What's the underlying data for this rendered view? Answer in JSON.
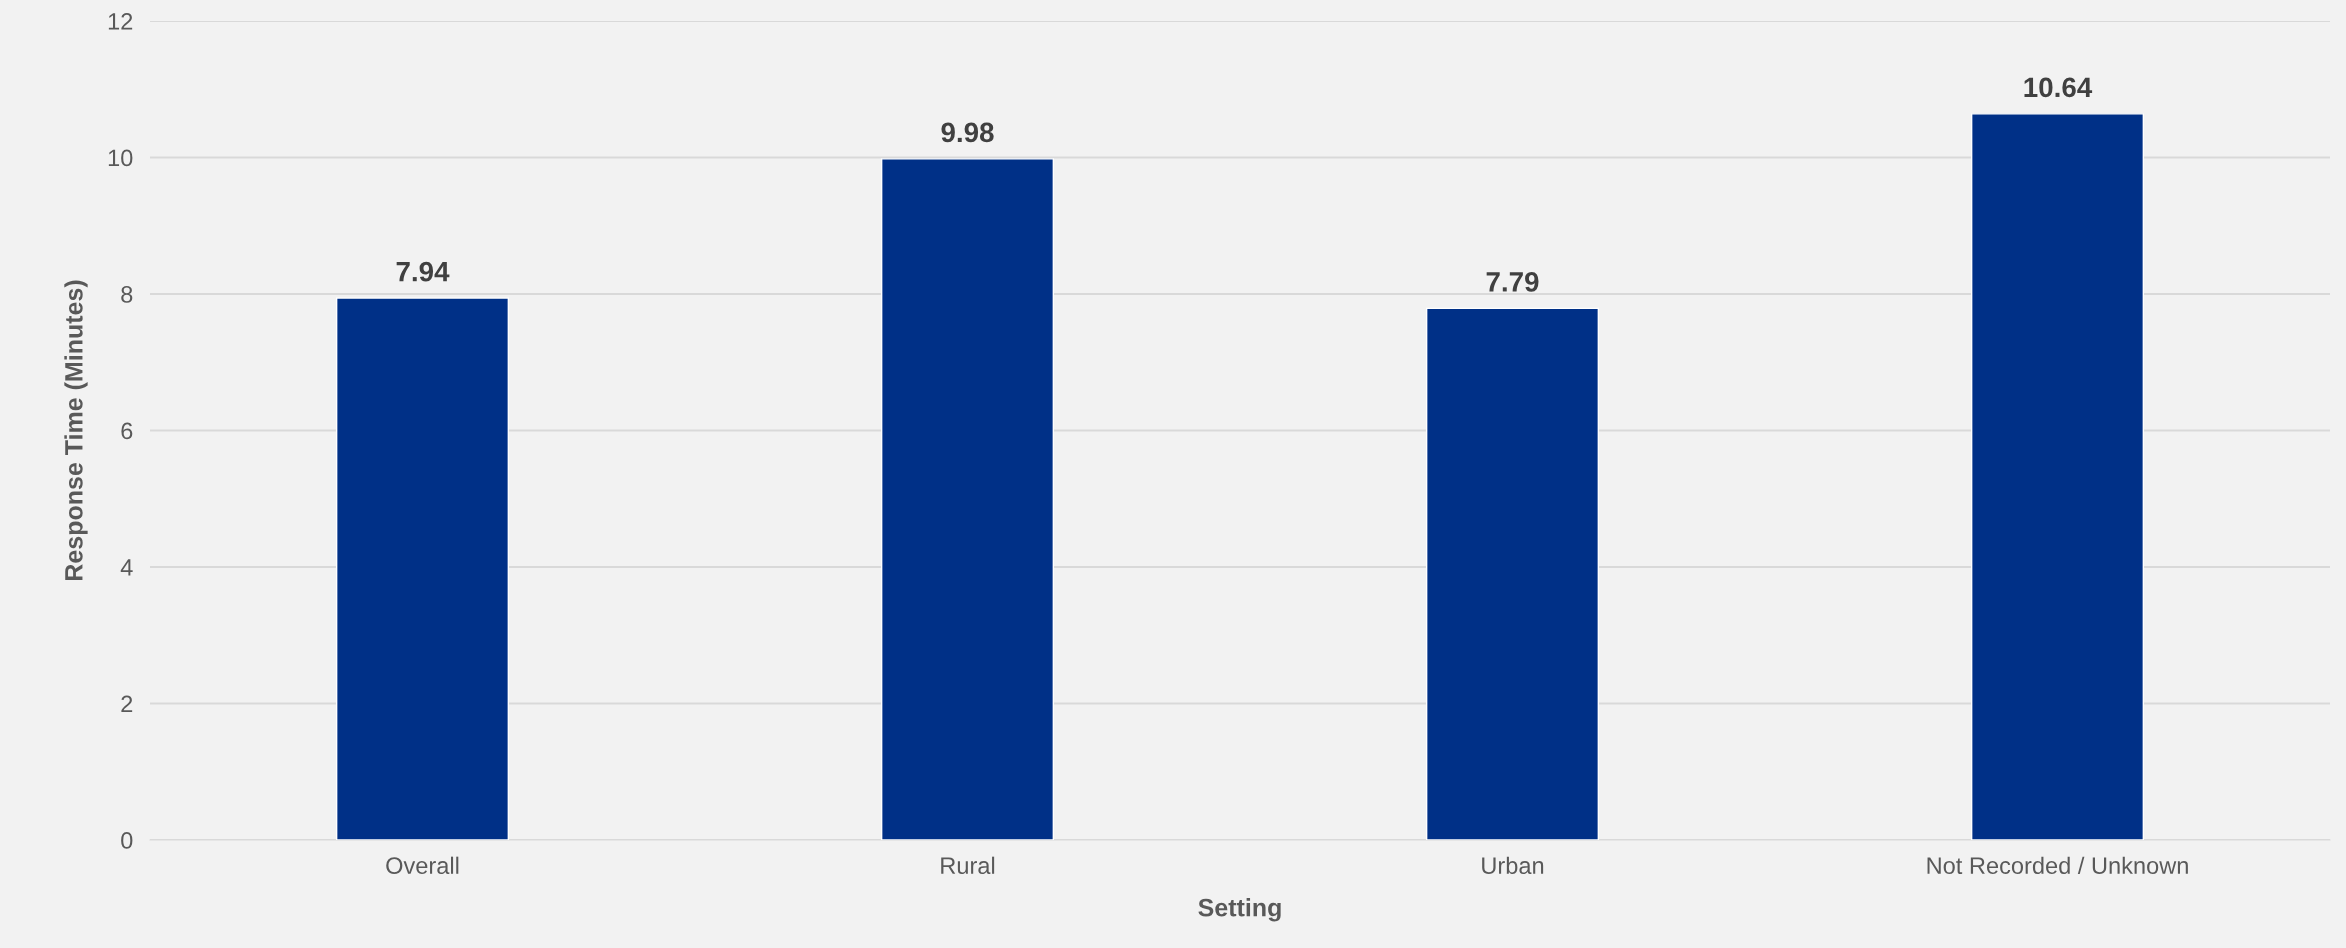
{
  "chart_data": {
    "type": "bar",
    "xlabel": "Setting",
    "ylabel": "Response Time (Minutes)",
    "categories": [
      "Overall",
      "Rural",
      "Urban",
      "Not Recorded / Unknown"
    ],
    "values": [
      7.94,
      9.98,
      7.79,
      10.64
    ],
    "color": "#003087",
    "ylim": [
      0,
      12
    ],
    "yticks": [
      0,
      2,
      4,
      6,
      8,
      10,
      12
    ],
    "grid": "y",
    "data_labels": true
  }
}
